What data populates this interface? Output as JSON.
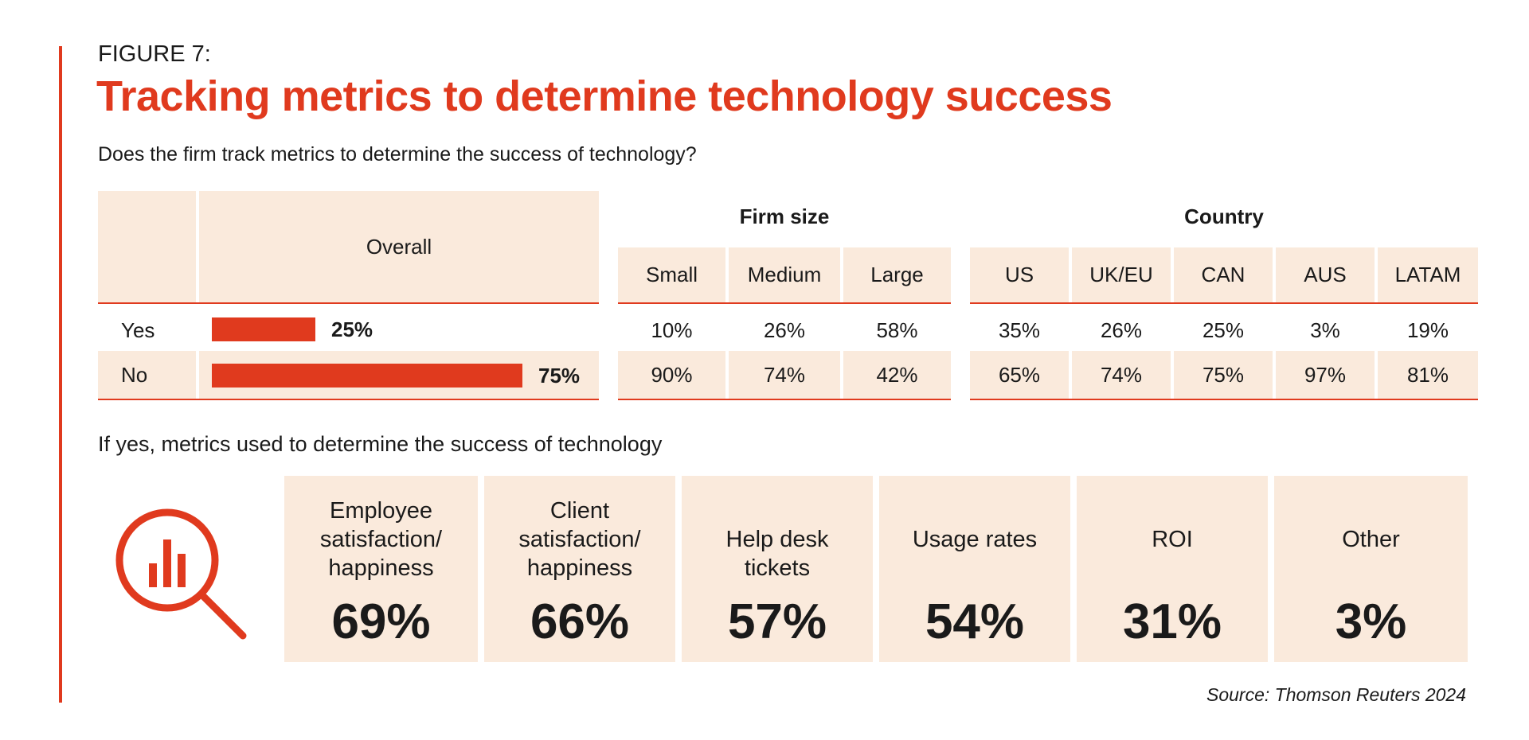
{
  "figure_label": "FIGURE 7:",
  "title": "Tracking metrics to determine technology success",
  "question": "Does the firm track metrics to determine the success of technology?",
  "table": {
    "overall_header": "Overall",
    "firm_size_header": "Firm size",
    "country_header": "Country",
    "firm_size_cols": [
      "Small",
      "Medium",
      "Large"
    ],
    "country_cols": [
      "US",
      "UK/EU",
      "CAN",
      "AUS",
      "LATAM"
    ],
    "rows": [
      {
        "label": "Yes",
        "overall": "25%",
        "firm_size": [
          "10%",
          "26%",
          "58%"
        ],
        "country": [
          "35%",
          "26%",
          "25%",
          "3%",
          "19%"
        ]
      },
      {
        "label": "No",
        "overall": "75%",
        "firm_size": [
          "90%",
          "74%",
          "42%"
        ],
        "country": [
          "65%",
          "74%",
          "75%",
          "97%",
          "81%"
        ]
      }
    ]
  },
  "sub_question": "If yes, metrics used to determine the success of technology",
  "metrics": [
    {
      "label": "Employee\nsatisfaction/\nhappiness",
      "value": "69%"
    },
    {
      "label": "Client\nsatisfaction/\nhappiness",
      "value": "66%"
    },
    {
      "label": "Help desk\ntickets",
      "value": "57%"
    },
    {
      "label": "Usage rates",
      "value": "54%"
    },
    {
      "label": "ROI",
      "value": "31%"
    },
    {
      "label": "Other",
      "value": "3%"
    }
  ],
  "source": "Source: Thomson Reuters 2024",
  "icon": "magnifier-bar-chart-icon",
  "colors": {
    "accent": "#e03a1e",
    "beige": "#faeadc",
    "text": "#1a1a1a"
  },
  "chart_data": [
    {
      "type": "bar",
      "categories": [
        "Yes",
        "No"
      ],
      "values": [
        25,
        75
      ],
      "xlim": [
        0,
        100
      ]
    },
    {
      "type": "table",
      "columns": [
        "Small",
        "Medium",
        "Large",
        "US",
        "UK/EU",
        "CAN",
        "AUS",
        "LATAM"
      ],
      "rows": [
        {
          "label": "Yes",
          "values": [
            10,
            26,
            58,
            35,
            26,
            25,
            3,
            19
          ]
        },
        {
          "label": "No",
          "values": [
            90,
            74,
            42,
            65,
            74,
            75,
            97,
            81
          ]
        }
      ]
    },
    {
      "type": "table",
      "categories": [
        "Employee satisfaction/ happiness",
        "Client satisfaction/ happiness",
        "Help desk tickets",
        "Usage rates",
        "ROI",
        "Other"
      ],
      "values": [
        69,
        66,
        57,
        54,
        31,
        3
      ]
    }
  ]
}
